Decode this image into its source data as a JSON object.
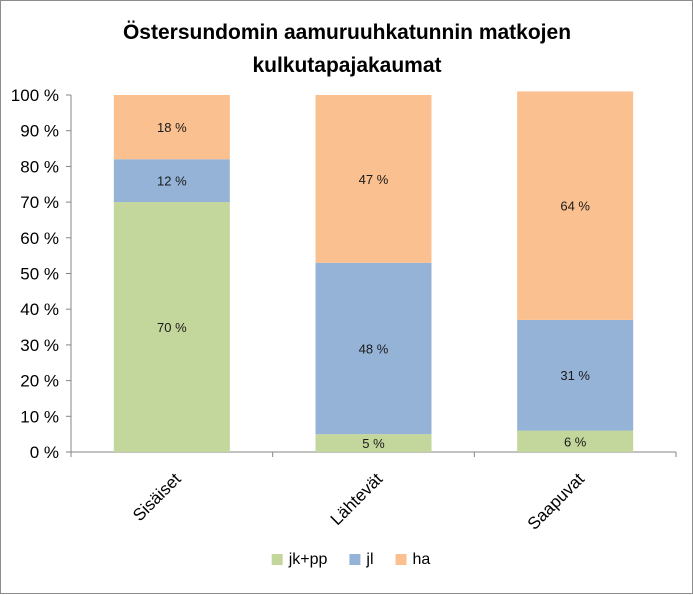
{
  "chart_data": {
    "type": "bar",
    "stacked": true,
    "title": "Östersundomin aamuruuhkatunnin  matkojen kulkutapajakaumat",
    "title_lines": [
      "Östersundomin aamuruuhkatunnin  matkojen",
      "kulkutapajakaumat"
    ],
    "categories": [
      "Sisäiset",
      "Lähtevät",
      "Saapuvat"
    ],
    "series": [
      {
        "name": "jk+pp",
        "color": "#c3d69b",
        "values": [
          70,
          5,
          6
        ],
        "labels": [
          "70 %",
          "5 %",
          "6 %"
        ]
      },
      {
        "name": "jl",
        "color": "#95b3d7",
        "values": [
          12,
          48,
          31
        ],
        "labels": [
          "12 %",
          "48 %",
          "31 %"
        ]
      },
      {
        "name": "ha",
        "color": "#fac090",
        "values": [
          18,
          47,
          64
        ],
        "labels": [
          "18 %",
          "47 %",
          "64 %"
        ]
      }
    ],
    "xlabel": "",
    "ylabel": "",
    "ylim": [
      0,
      100
    ],
    "yticks": [
      0,
      10,
      20,
      30,
      40,
      50,
      60,
      70,
      80,
      90,
      100
    ],
    "ytick_labels": [
      "0 %",
      "10 %",
      "20 %",
      "30 %",
      "40 %",
      "50 %",
      "60 %",
      "70 %",
      "80 %",
      "90 %",
      "100 %"
    ],
    "grid": false,
    "legend_position": "bottom"
  }
}
